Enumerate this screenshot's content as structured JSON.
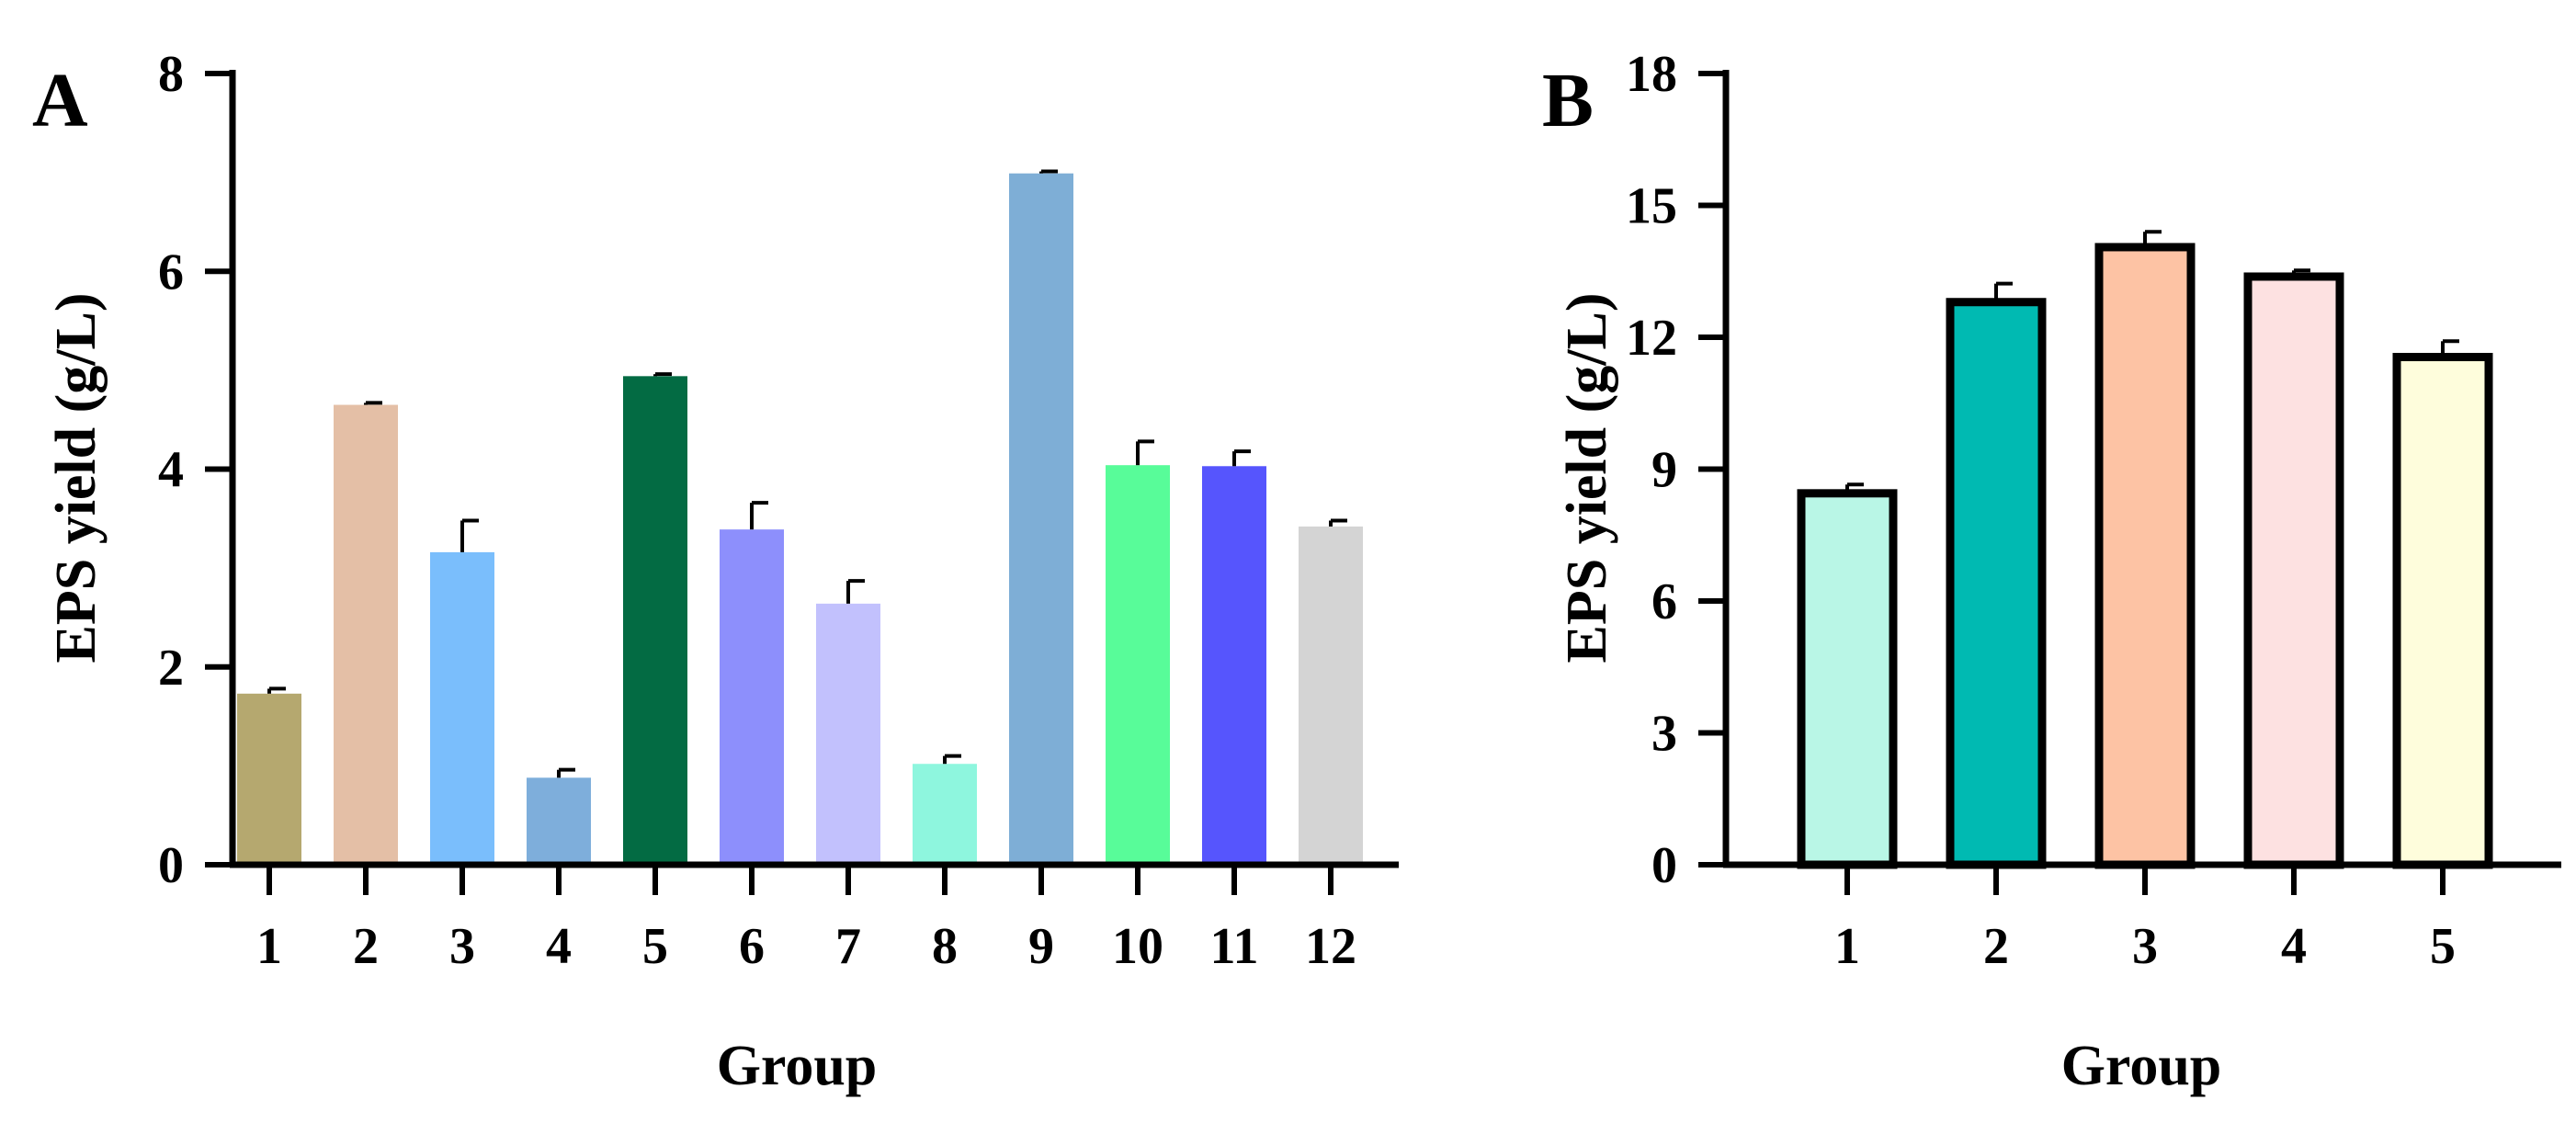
{
  "chart_data": [
    {
      "type": "bar",
      "panel": "A",
      "title": "",
      "xlabel": "Group",
      "ylabel": "EPS yield (g/L)",
      "ylim": [
        0,
        8
      ],
      "yticks": [
        0,
        2,
        4,
        6,
        8
      ],
      "ytick_labels": [
        "0",
        "2",
        "4",
        "6",
        "8"
      ],
      "categories": [
        "1",
        "2",
        "3",
        "4",
        "5",
        "6",
        "7",
        "8",
        "9",
        "10",
        "11",
        "12"
      ],
      "values": [
        1.73,
        4.65,
        3.16,
        0.88,
        4.94,
        3.39,
        2.64,
        1.02,
        6.99,
        4.04,
        4.03,
        3.42
      ],
      "errors": [
        0.05,
        0.02,
        0.32,
        0.08,
        0.02,
        0.27,
        0.23,
        0.08,
        0.02,
        0.24,
        0.15,
        0.06
      ],
      "colors": [
        "#B5A86F",
        "#E4BFA6",
        "#7ABEFC",
        "#7EAEDB",
        "#036B43",
        "#8D8FFC",
        "#C2C1FD",
        "#8EF6DE",
        "#7EAED6",
        "#58FC99",
        "#5655FD",
        "#D4D4D4"
      ],
      "bar_outline": false
    },
    {
      "type": "bar",
      "panel": "B",
      "title": "",
      "xlabel": "Group",
      "ylabel": "EPS yield (g/L)",
      "ylim": [
        0,
        18
      ],
      "yticks": [
        0,
        3,
        6,
        9,
        12,
        15,
        18
      ],
      "ytick_labels": [
        "0",
        "3",
        "6",
        "9",
        "12",
        "15",
        "18"
      ],
      "categories": [
        "1",
        "2",
        "3",
        "4",
        "5"
      ],
      "values": [
        8.45,
        12.8,
        14.05,
        13.38,
        11.55
      ],
      "errors": [
        0.2,
        0.42,
        0.35,
        0.14,
        0.36
      ],
      "colors": [
        "#B9F6E6",
        "#00BAB2",
        "#FDC3A4",
        "#FDE1E1",
        "#FEFDDC"
      ],
      "bar_outline": true
    }
  ]
}
